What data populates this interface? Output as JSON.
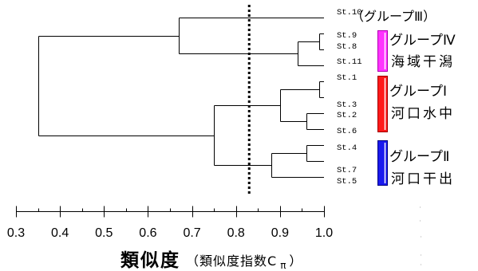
{
  "chart_data": {
    "type": "dendrogram",
    "xlabel": "類似度",
    "xlabel_note": {
      "prefix": "（類似度指数C",
      "sub": "π",
      "suffix": "）"
    },
    "xlim": [
      0.3,
      1.0
    ],
    "xticks": [
      "0.3",
      "0.4",
      "0.5",
      "0.6",
      "0.7",
      "0.8",
      "0.9",
      "1.0"
    ],
    "grid": false,
    "threshold": 0.83,
    "tree": {
      "similarity": 0.35,
      "children": [
        {
          "similarity": 0.67,
          "children": [
            "St.10",
            {
              "similarity": 0.94,
              "children": [
                {
                  "similarity": 0.99,
                  "children": [
                    "St.9",
                    "St.8"
                  ]
                },
                "St.11"
              ]
            }
          ]
        },
        {
          "similarity": 0.75,
          "children": [
            {
              "similarity": 0.9,
              "children": [
                {
                  "similarity": 0.99,
                  "children": [
                    "St.1",
                    "St.3"
                  ]
                },
                {
                  "similarity": 0.96,
                  "children": [
                    "St.2",
                    "St.6"
                  ]
                }
              ]
            },
            {
              "similarity": 0.88,
              "children": [
                {
                  "similarity": 0.96,
                  "children": [
                    "St.4",
                    "St.7"
                  ]
                },
                "St.5"
              ]
            }
          ]
        }
      ]
    },
    "groups": [
      {
        "label": "（グループⅢ）"
      },
      {
        "label": "グループⅣ",
        "description": "海域干潟",
        "color": "#ff33ff"
      },
      {
        "label": "グループⅠ",
        "description": "河口水中",
        "color": "#ff1a1a"
      },
      {
        "label": "グループⅡ",
        "description": "河口干出",
        "color": "#1a1aee"
      }
    ]
  }
}
